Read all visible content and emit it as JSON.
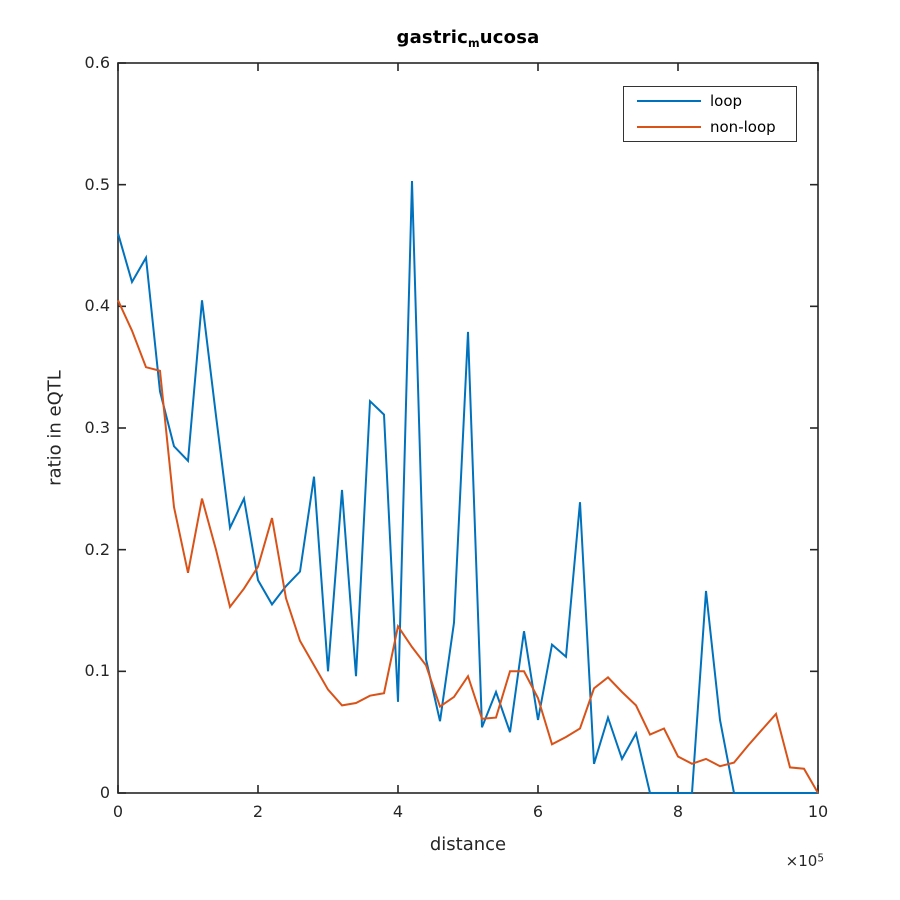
{
  "figure_title": {
    "prefix": "gastric",
    "subscript": "m",
    "suffix": "ucosa"
  },
  "axis_offset": {
    "base": "×10",
    "exponent": "5"
  },
  "legend": {
    "position": "top-right",
    "items": [
      {
        "label": "loop",
        "color": "#0072BD"
      },
      {
        "label": "non-loop",
        "color": "#D95319"
      }
    ]
  },
  "colors": {
    "axis": "#262626",
    "tick_text": "#262626",
    "title": "#000000",
    "background": "#ffffff"
  },
  "chart_data": {
    "type": "line",
    "title": "gastric_mucosa",
    "xlabel": "distance",
    "ylabel": "ratio in eQTL",
    "grid": false,
    "box": true,
    "legend_position": "top-right",
    "x_axis": {
      "min": 0,
      "max": 10,
      "unit_multiplier": 100000,
      "offset_label": "×10^5",
      "tick_values": [
        0,
        2,
        4,
        6,
        8,
        10
      ],
      "tick_labels": [
        "0",
        "2",
        "4",
        "6",
        "8",
        "10"
      ]
    },
    "y_axis": {
      "min": 0,
      "max": 0.6,
      "tick_values": [
        0,
        0.1,
        0.2,
        0.3,
        0.4,
        0.5,
        0.6
      ],
      "tick_labels": [
        "0",
        "0.1",
        "0.2",
        "0.3",
        "0.4",
        "0.5",
        "0.6"
      ]
    },
    "x_start": 0,
    "x_step": 0.2,
    "series": [
      {
        "name": "loop",
        "color": "#0072BD",
        "values": [
          0.46,
          0.42,
          0.44,
          0.33,
          0.285,
          0.273,
          0.405,
          0.31,
          0.218,
          0.242,
          0.175,
          0.155,
          0.17,
          0.182,
          0.26,
          0.1,
          0.249,
          0.096,
          0.322,
          0.311,
          0.075,
          0.503,
          0.11,
          0.059,
          0.14,
          0.379,
          0.054,
          0.083,
          0.05,
          0.133,
          0.06,
          0.122,
          0.112,
          0.239,
          0.024,
          0.062,
          0.028,
          0.049,
          0,
          0,
          0,
          0,
          0.166,
          0.06,
          0,
          0,
          0,
          0,
          0,
          0,
          0
        ]
      },
      {
        "name": "non-loop",
        "color": "#D95319",
        "values": [
          0.405,
          0.38,
          0.35,
          0.347,
          0.235,
          0.181,
          0.242,
          0.2,
          0.153,
          0.168,
          0.186,
          0.226,
          0.16,
          0.125,
          0.105,
          0.085,
          0.072,
          0.074,
          0.08,
          0.082,
          0.137,
          0.12,
          0.105,
          0.071,
          0.079,
          0.096,
          0.061,
          0.062,
          0.1,
          0.1,
          0.078,
          0.04,
          0.046,
          0.053,
          0.086,
          0.095,
          0.083,
          0.072,
          0.048,
          0.053,
          0.03,
          0.024,
          0.028,
          0.022,
          0.025,
          0.039,
          0.052,
          0.065,
          0.021,
          0.02,
          0
        ]
      }
    ]
  }
}
